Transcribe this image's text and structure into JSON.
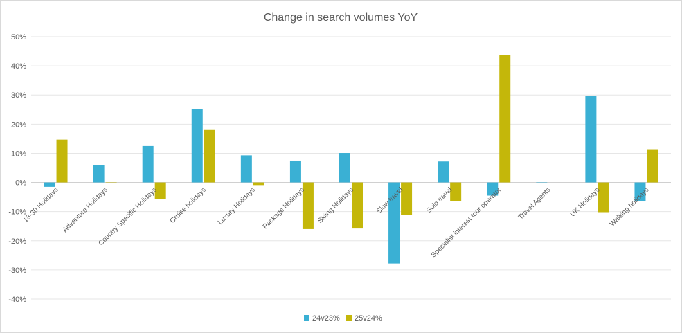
{
  "chart_data": {
    "type": "bar",
    "title": "Change in search volumes YoY",
    "categories": [
      "18-30 Holidays",
      "Adventure Holidays",
      "Country Specific Holidays",
      "Cruise holidays",
      "Luxury Holidays",
      "Package Holidays",
      "Skiing Holidays",
      "Slow travel",
      "Solo travel",
      "Specialist interest tour operator",
      "Travel Agents",
      "UK Holidays",
      "Walking holidays"
    ],
    "series": [
      {
        "name": "24v23%",
        "color": "#3AB0D4",
        "values": [
          -1.5,
          6,
          12.5,
          25.3,
          9.3,
          7.5,
          10.1,
          -27.8,
          7.2,
          -4.5,
          -0.3,
          29.8,
          -6.5
        ]
      },
      {
        "name": "25v24%",
        "color": "#C4B70A",
        "values": [
          14.7,
          -0.3,
          -5.8,
          18,
          -0.9,
          -16,
          -15.8,
          -11.2,
          -6.4,
          43.8,
          0,
          -10.2,
          11.4
        ]
      }
    ],
    "ylim": [
      -40,
      50
    ],
    "yticks": [
      "50%",
      "40%",
      "30%",
      "20%",
      "10%",
      "0%",
      "-10%",
      "-20%",
      "-30%",
      "-40%"
    ],
    "grid": true,
    "legend_position": "bottom"
  }
}
